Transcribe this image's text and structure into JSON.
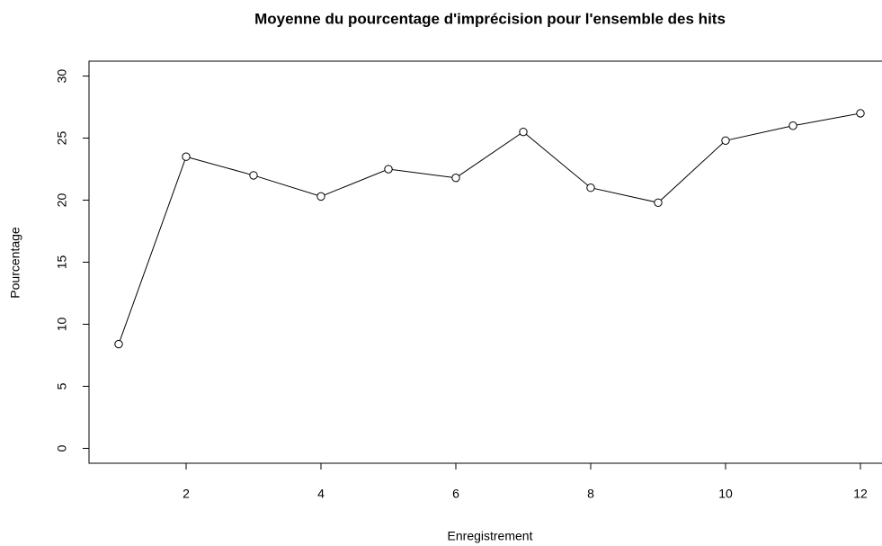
{
  "chart_data": {
    "type": "line",
    "title": "Moyenne du pourcentage d'imprécision pour l'ensemble des hits",
    "x_label": "Enregistrement",
    "y_label": "Pourcentage",
    "x": [
      1,
      2,
      3,
      4,
      5,
      6,
      7,
      8,
      9,
      10,
      11,
      12
    ],
    "values": [
      8.4,
      23.5,
      22.0,
      20.3,
      22.5,
      21.8,
      25.5,
      21.0,
      19.8,
      24.8,
      26.0,
      27.0
    ],
    "color": "#000000",
    "xlim": [
      0.56,
      12.44
    ],
    "ylim": [
      -1.2,
      31.2
    ],
    "xticks": [
      2,
      4,
      6,
      8,
      10,
      12
    ],
    "yticks": [
      0,
      5,
      10,
      15,
      20,
      25,
      30
    ]
  }
}
